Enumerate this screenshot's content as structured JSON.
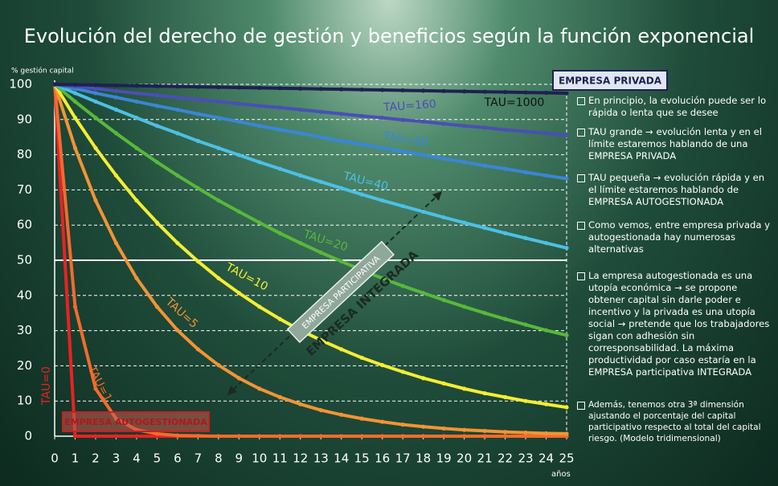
{
  "chart_data": {
    "type": "line",
    "title": "Evolución del derecho de gestión y beneficios según la función exponencial",
    "y_label": "% gestión capital",
    "x_label": "años",
    "x": [
      0,
      1,
      2,
      3,
      4,
      5,
      6,
      7,
      8,
      9,
      10,
      11,
      12,
      13,
      14,
      15,
      16,
      17,
      18,
      19,
      20,
      21,
      22,
      23,
      24,
      25
    ],
    "xlim": [
      0,
      25
    ],
    "xticks": [
      0,
      1,
      2,
      3,
      4,
      5,
      6,
      7,
      8,
      9,
      10,
      11,
      12,
      13,
      14,
      15,
      16,
      17,
      18,
      19,
      20,
      21,
      22,
      23,
      24,
      25
    ],
    "ylim": [
      0,
      100
    ],
    "yticks": [
      0,
      10,
      20,
      30,
      40,
      50,
      60,
      70,
      80,
      90,
      100
    ],
    "grid": true,
    "highlight_y": 50,
    "series": [
      {
        "name": "TAU=1000",
        "color": "#1e2150",
        "values": [
          100,
          99.9,
          99.8,
          99.7,
          99.6,
          99.5,
          99.4,
          99.3,
          99.2,
          99.1,
          99.0,
          98.9,
          98.8,
          98.7,
          98.6,
          98.5,
          98.4,
          98.3,
          98.2,
          98.1,
          98.0,
          97.9,
          97.8,
          97.7,
          97.6,
          97.5
        ]
      },
      {
        "name": "TAU=160",
        "color": "#4a4fb5",
        "values": [
          100,
          99.4,
          98.8,
          98.1,
          97.5,
          96.9,
          96.3,
          95.7,
          95.1,
          94.5,
          93.9,
          93.4,
          92.8,
          92.2,
          91.6,
          91.0,
          90.5,
          89.9,
          89.4,
          88.8,
          88.2,
          87.7,
          87.1,
          86.6,
          86.1,
          85.5
        ]
      },
      {
        "name": "TAU=80",
        "color": "#3a86d6",
        "values": [
          100,
          98.8,
          97.5,
          96.3,
          95.1,
          93.9,
          92.8,
          91.6,
          90.5,
          89.4,
          88.2,
          87.1,
          86.1,
          85.0,
          83.9,
          82.9,
          81.9,
          80.9,
          79.9,
          78.9,
          77.9,
          76.9,
          76.0,
          75.0,
          74.1,
          73.2
        ]
      },
      {
        "name": "TAU=40",
        "color": "#4cc0e6",
        "values": [
          100,
          97.5,
          95.1,
          92.8,
          90.5,
          88.2,
          86.1,
          83.9,
          81.9,
          79.9,
          77.9,
          76.0,
          74.1,
          72.3,
          70.5,
          68.7,
          67.0,
          65.4,
          63.8,
          62.2,
          60.7,
          59.2,
          57.7,
          56.3,
          54.9,
          53.5
        ]
      },
      {
        "name": "TAU=20",
        "color": "#58b83a",
        "values": [
          100,
          95.1,
          90.5,
          86.1,
          81.9,
          77.9,
          74.1,
          70.5,
          67.0,
          63.8,
          60.7,
          57.7,
          54.9,
          52.2,
          49.7,
          47.2,
          44.9,
          42.7,
          40.7,
          38.7,
          36.8,
          35.0,
          33.3,
          31.7,
          30.1,
          28.7
        ]
      },
      {
        "name": "TAU=10",
        "color": "#f4ee32",
        "values": [
          100,
          90.5,
          81.9,
          74.1,
          67.0,
          60.7,
          54.9,
          49.7,
          44.9,
          40.7,
          36.8,
          33.3,
          30.1,
          27.3,
          24.7,
          22.3,
          20.2,
          18.3,
          16.5,
          15.0,
          13.5,
          12.2,
          11.1,
          10.0,
          9.1,
          8.2
        ]
      },
      {
        "name": "TAU=5",
        "color": "#f39434",
        "values": [
          100,
          81.9,
          67.0,
          54.9,
          44.9,
          36.8,
          30.1,
          24.7,
          20.2,
          16.5,
          13.5,
          11.1,
          9.1,
          7.4,
          6.1,
          5.0,
          4.1,
          3.3,
          2.7,
          2.2,
          1.8,
          1.5,
          1.2,
          1.0,
          0.8,
          0.7
        ]
      },
      {
        "name": "TAU=1",
        "color": "#f36b2e",
        "values": [
          100,
          36.8,
          13.5,
          5.0,
          1.8,
          0.7,
          0.2,
          0.1,
          0,
          0,
          0,
          0,
          0,
          0,
          0,
          0,
          0,
          0,
          0,
          0,
          0,
          0,
          0,
          0,
          0,
          0
        ]
      },
      {
        "name": "TAU=0",
        "color": "#e82222",
        "values": [
          100,
          0,
          0,
          0,
          0,
          0,
          0,
          0,
          0,
          0,
          0,
          0,
          0,
          0,
          0,
          0,
          0,
          0,
          0,
          0,
          0,
          0,
          0,
          0,
          0,
          0
        ]
      }
    ],
    "annotations": {
      "privada": "EMPRESA PRIVADA",
      "autogestionada": "EMPRESA AUTOGESTIONADA",
      "participativa": "EMPRESA PARTICIPATIVA",
      "integrada": "EMPRESA INTEGRADA"
    },
    "notes": [
      "En principio, la evolución puede ser lo rápida o lenta que se desee",
      "TAU grande → evolución lenta y en el límite estaremos hablando de una EMPRESA PRIVADA",
      "TAU pequeña → evolución  rápida y en el límite estaremos hablando de EMPRESA AUTOGESTIONADA",
      "Como vemos, entre empresa privada y autogestionada hay numerosas alternativas",
      "La empresa autogestionada es una utopía económica → se propone obtener capital sin darle poder e incentivo y la privada es una utopía social → pretende que los trabajadores sigan con adhesión sin corresponsabilidad. La máxima productividad  por caso estaría en la EMPRESA participativa INTEGRADA",
      "Además, tenemos otra 3ª dimensión ajustando el porcentaje del capital participativo respecto al total del capital riesgo. (Modelo tridimensional)"
    ]
  }
}
